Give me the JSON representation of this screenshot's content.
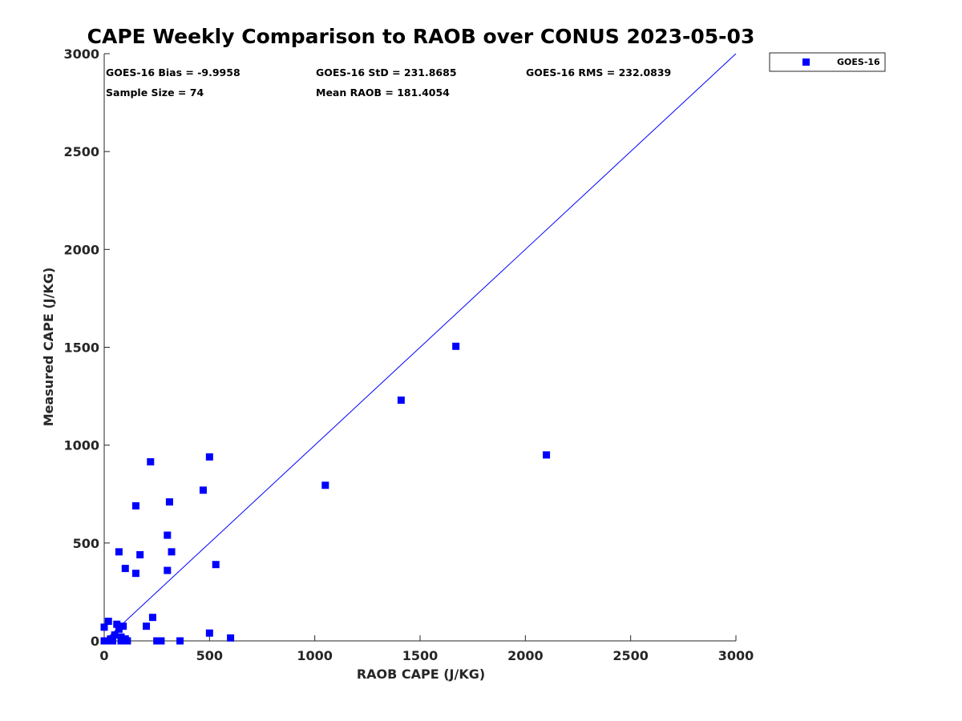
{
  "chart_data": {
    "type": "scatter",
    "title": "CAPE Weekly Comparison to RAOB over CONUS 2023-05-03",
    "xlabel": "RAOB CAPE (J/KG)",
    "ylabel": "Measured CAPE (J/KG)",
    "xlim": [
      0,
      3000
    ],
    "ylim": [
      0,
      3000
    ],
    "xticks": [
      0,
      500,
      1000,
      1500,
      2000,
      2500,
      3000
    ],
    "yticks": [
      0,
      500,
      1000,
      1500,
      2000,
      2500,
      3000
    ],
    "grid": false,
    "legend_position": "outside-top-right",
    "reference_line": {
      "name": "1:1 line",
      "from": [
        0,
        0
      ],
      "to": [
        3000,
        3000
      ],
      "color": "#0000ff"
    },
    "series": [
      {
        "name": "GOES-16",
        "color": "#0000ff",
        "marker": "square",
        "points": [
          [
            0,
            0
          ],
          [
            0,
            70
          ],
          [
            20,
            100
          ],
          [
            10,
            0
          ],
          [
            30,
            10
          ],
          [
            40,
            0
          ],
          [
            50,
            30
          ],
          [
            60,
            85
          ],
          [
            70,
            60
          ],
          [
            70,
            455
          ],
          [
            80,
            20
          ],
          [
            80,
            0
          ],
          [
            90,
            75
          ],
          [
            100,
            10
          ],
          [
            100,
            370
          ],
          [
            110,
            0
          ],
          [
            150,
            345
          ],
          [
            150,
            690
          ],
          [
            170,
            440
          ],
          [
            200,
            75
          ],
          [
            220,
            915
          ],
          [
            230,
            120
          ],
          [
            250,
            0
          ],
          [
            270,
            0
          ],
          [
            300,
            540
          ],
          [
            300,
            360
          ],
          [
            310,
            710
          ],
          [
            320,
            455
          ],
          [
            360,
            0
          ],
          [
            470,
            770
          ],
          [
            500,
            940
          ],
          [
            500,
            40
          ],
          [
            530,
            390
          ],
          [
            600,
            15
          ],
          [
            1050,
            795
          ],
          [
            1410,
            1230
          ],
          [
            1670,
            1505
          ],
          [
            2100,
            950
          ]
        ]
      }
    ],
    "stats": {
      "bias": "GOES-16 Bias = -9.9958",
      "std": "GOES-16 StD = 231.8685",
      "rms": "GOES-16 RMS = 232.0839",
      "sample_size": "Sample Size = 74",
      "mean_raob": "Mean RAOB = 181.4054"
    },
    "legend": [
      {
        "label": "GOES-16",
        "color": "#0000ff",
        "marker": "square"
      }
    ]
  }
}
